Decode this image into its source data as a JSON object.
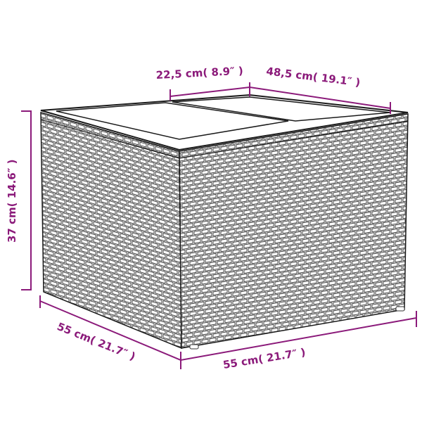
{
  "colors": {
    "dimension": "#8b1a7a",
    "outline": "#1a1a1a",
    "background": "#ffffff"
  },
  "product": {
    "type": "rattan storage side table with lid"
  },
  "dimensions": {
    "lid_depth": "22,5 cm( 8.9″ )",
    "lid_width": "48,5 cm( 19.1″ )",
    "height": "37 cm( 14.6″ )",
    "depth": "55 cm( 21.7″ )",
    "width": "55 cm( 21.7″ )"
  }
}
